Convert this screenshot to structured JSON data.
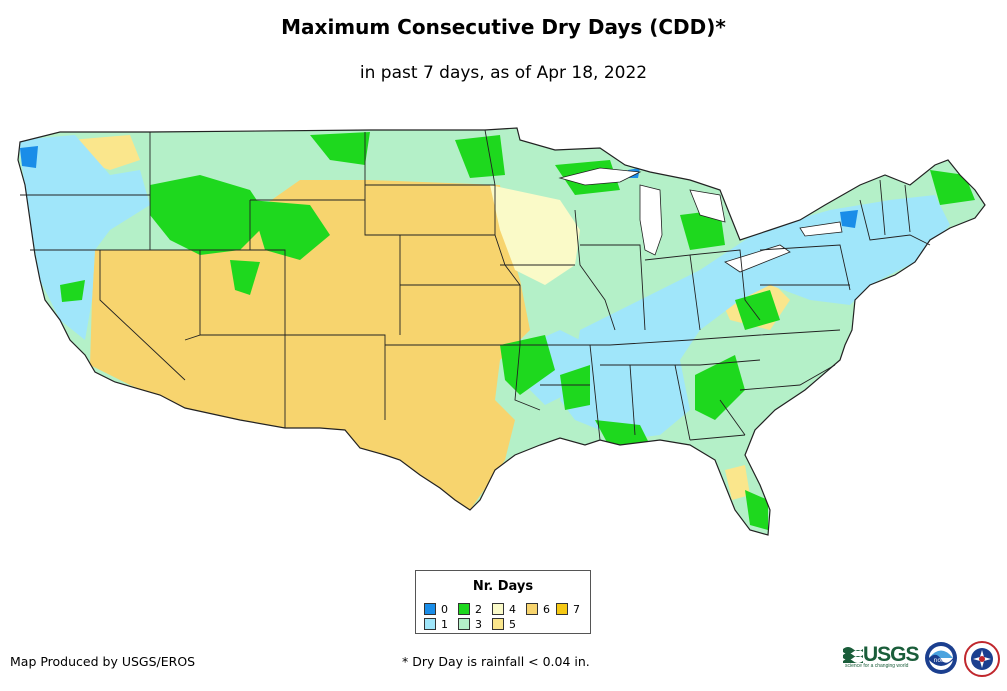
{
  "map": {
    "title": "Maximum Consecutive Dry Days (CDD)*",
    "subtitle": "in past 7 days, as of Apr 18, 2022",
    "region": "Contiguous United States",
    "metric": "Nr. Days",
    "legend": {
      "title": "Nr. Days",
      "entries": [
        {
          "label": "0",
          "color": "#1a8de8"
        },
        {
          "label": "1",
          "color": "#a0e6fa"
        },
        {
          "label": "2",
          "color": "#1ed81e"
        },
        {
          "label": "3",
          "color": "#b4f0c8"
        },
        {
          "label": "4",
          "color": "#fafac8"
        },
        {
          "label": "5",
          "color": "#fae68c"
        },
        {
          "label": "6",
          "color": "#f7d46e"
        },
        {
          "label": "7",
          "color": "#f5c814"
        }
      ]
    },
    "credit": "Map Produced by USGS/EROS",
    "footnote": "* Dry Day is rainfall < 0.04 in.",
    "logos": [
      {
        "name": "usgs-logo",
        "text": "USGS",
        "tagline": "science for a changing world"
      },
      {
        "name": "noaa-logo",
        "text": "noaa"
      },
      {
        "name": "nws-logo",
        "text": "NATIONAL WEATHER SERVICE"
      }
    ],
    "colors": {
      "border": "#222222",
      "water": "#ffffff"
    }
  }
}
